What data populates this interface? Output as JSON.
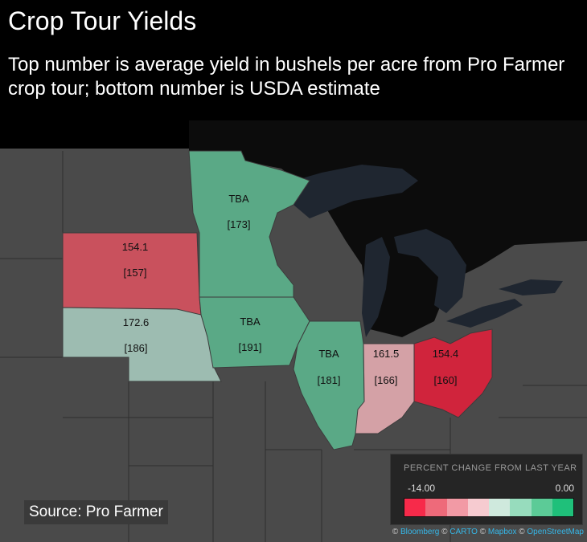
{
  "title": "Crop Tour Yields",
  "subtitle": "Top number is average yield in bushels per acre from Pro Farmer crop tour; bottom number is USDA estimate",
  "states": [
    {
      "id": "minnesota",
      "top": "TBA",
      "bottom": "[173]",
      "color": "#5aa986"
    },
    {
      "id": "south-dakota",
      "top": "154.1",
      "bottom": "[157]",
      "color": "#c9515d"
    },
    {
      "id": "nebraska",
      "top": "172.6",
      "bottom": "[186]",
      "color": "#9dbcb1"
    },
    {
      "id": "iowa",
      "top": "TBA",
      "bottom": "[191]",
      "color": "#5aa986"
    },
    {
      "id": "illinois",
      "top": "TBA",
      "bottom": "[181]",
      "color": "#5aa986"
    },
    {
      "id": "indiana",
      "top": "161.5",
      "bottom": "[166]",
      "color": "#d4a1a6"
    },
    {
      "id": "ohio",
      "top": "154.4",
      "bottom": "[160]",
      "color": "#d0243c"
    }
  ],
  "legend": {
    "title": "PERCENT CHANGE FROM LAST YEAR",
    "min": "-14.00",
    "max": "0.00",
    "colors": [
      "#f72a4a",
      "#ee6a7a",
      "#f29aa5",
      "#f6cbd0",
      "#cfe9dd",
      "#97dcbd",
      "#5ccb97",
      "#1fc07a"
    ]
  },
  "source": "Source: Pro Farmer",
  "attribution": {
    "prefix": "© ",
    "links": [
      "Bloomberg",
      "CARTO",
      "Mapbox",
      "OpenStreetMap"
    ]
  },
  "colors": {
    "land": "#4a4a4a",
    "water": "#1f2630",
    "border": "#2e2e2e"
  }
}
